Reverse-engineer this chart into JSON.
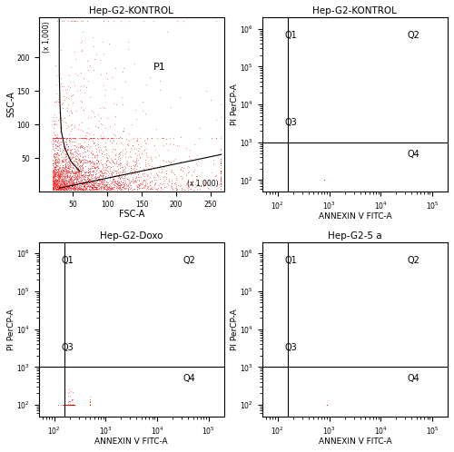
{
  "titles": [
    "Hep-G2-KONTROL",
    "Hep-G2-KONTROL",
    "Hep-G2-Doxo",
    "Hep-G2-5 a"
  ],
  "dot_color": "#ff0000",
  "dot_size": 0.3,
  "dot_alpha": 0.6,
  "background_color": "#ffffff",
  "panel1": {
    "xlabel": "FSC-A",
    "ylabel": "SSC-A",
    "xlabel_suffix": "(x 1,000)",
    "ylabel_prefix": "(x 1,000)",
    "xrange": [
      0,
      270
    ],
    "yrange": [
      0,
      260
    ],
    "xticks": [
      50,
      100,
      150,
      200,
      250
    ],
    "yticks": [
      50,
      100,
      150,
      200
    ],
    "label": "P1",
    "n_points": 3000
  },
  "panel234": {
    "xlabel": "ANNEXIN V FITC-A",
    "ylabel": "PI PerCP-A",
    "xlog_range": [
      1.7,
      5.3
    ],
    "ylog_range": [
      1.7,
      6.3
    ],
    "quadrant_labels": [
      "Q1",
      "Q2",
      "Q3",
      "Q4"
    ],
    "divider_x": 2.2,
    "divider_y": 3.0
  },
  "seeds": [
    42,
    123,
    456,
    789
  ]
}
